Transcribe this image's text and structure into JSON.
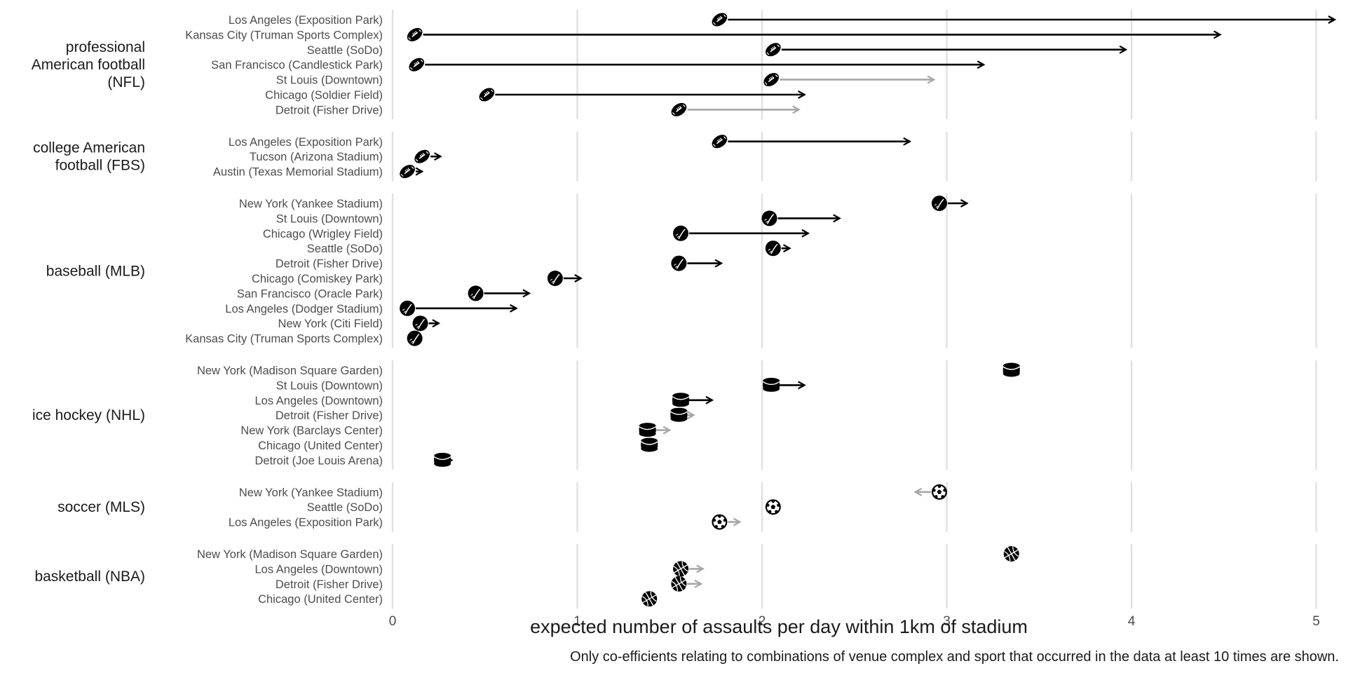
{
  "chart_data": {
    "type": "arrow-dot",
    "xlabel": "expected number of assaults per day within 1km of stadium",
    "caption": "Only co-efficients relating to combinations of venue complex and sport that occurred in the data at least 10 times are shown.",
    "xlim": [
      0,
      5.1
    ],
    "x_ticks": [
      "0",
      "1",
      "2",
      "3",
      "4",
      "5"
    ],
    "grid": true,
    "colors": {
      "significant": "#000000",
      "not_significant": "#a6a6a6",
      "grid": "#e0e0e0",
      "label": "#4d4d4d"
    },
    "groups": [
      {
        "name": "professional American football (NFL)",
        "label_lines": [
          "professional",
          "American football",
          "(NFL)"
        ],
        "icon": "american-football-icon",
        "rows": [
          {
            "venue": "Los Angeles (Exposition Park)",
            "from": 1.77,
            "to": 5.1,
            "significant": true
          },
          {
            "venue": "Kansas City (Truman Sports Complex)",
            "from": 0.12,
            "to": 4.48,
            "significant": true
          },
          {
            "venue": "Seattle (SoDo)",
            "from": 2.06,
            "to": 3.97,
            "significant": true
          },
          {
            "venue": "San Francisco (Candlestick Park)",
            "from": 0.13,
            "to": 3.2,
            "significant": true
          },
          {
            "venue": "St Louis (Downtown)",
            "from": 2.05,
            "to": 2.93,
            "significant": false
          },
          {
            "venue": "Chicago (Soldier Field)",
            "from": 0.51,
            "to": 2.23,
            "significant": true
          },
          {
            "venue": "Detroit (Fisher Drive)",
            "from": 1.55,
            "to": 2.2,
            "significant": false
          }
        ]
      },
      {
        "name": "college American football (FBS)",
        "label_lines": [
          "college American",
          "football (FBS)"
        ],
        "icon": "american-football-icon",
        "rows": [
          {
            "venue": "Los Angeles (Exposition Park)",
            "from": 1.77,
            "to": 2.8,
            "significant": true
          },
          {
            "venue": "Tucson (Arizona Stadium)",
            "from": 0.16,
            "to": 0.26,
            "significant": true
          },
          {
            "venue": "Austin (Texas Memorial Stadium)",
            "from": 0.08,
            "to": 0.16,
            "significant": true
          }
        ]
      },
      {
        "name": "baseball (MLB)",
        "label_lines": [
          "baseball (MLB)"
        ],
        "icon": "baseball-icon",
        "rows": [
          {
            "venue": "New York (Yankee Stadium)",
            "from": 2.96,
            "to": 3.11,
            "significant": true
          },
          {
            "venue": "St Louis (Downtown)",
            "from": 2.04,
            "to": 2.42,
            "significant": true
          },
          {
            "venue": "Chicago (Wrigley Field)",
            "from": 1.56,
            "to": 2.25,
            "significant": true
          },
          {
            "venue": "Seattle (SoDo)",
            "from": 2.06,
            "to": 2.15,
            "significant": true
          },
          {
            "venue": "Detroit (Fisher Drive)",
            "from": 1.55,
            "to": 1.78,
            "significant": true
          },
          {
            "venue": "Chicago (Comiskey Park)",
            "from": 0.88,
            "to": 1.02,
            "significant": true
          },
          {
            "venue": "San Francisco (Oracle Park)",
            "from": 0.45,
            "to": 0.74,
            "significant": true
          },
          {
            "venue": "Los Angeles (Dodger Stadium)",
            "from": 0.08,
            "to": 0.67,
            "significant": true
          },
          {
            "venue": "New York (Citi Field)",
            "from": 0.15,
            "to": 0.25,
            "significant": true
          },
          {
            "venue": "Kansas City (Truman Sports Complex)",
            "from": 0.12,
            "to": 0.12,
            "significant": true
          }
        ]
      },
      {
        "name": "ice hockey (NHL)",
        "label_lines": [
          "ice hockey (NHL)"
        ],
        "icon": "hockey-puck-icon",
        "rows": [
          {
            "venue": "New York (Madison Square Garden)",
            "from": 3.35,
            "to": 3.35,
            "significant": true
          },
          {
            "venue": "St Louis (Downtown)",
            "from": 2.05,
            "to": 2.23,
            "significant": true
          },
          {
            "venue": "Los Angeles (Downtown)",
            "from": 1.56,
            "to": 1.73,
            "significant": true
          },
          {
            "venue": "Detroit (Fisher Drive)",
            "from": 1.55,
            "to": 1.63,
            "significant": false
          },
          {
            "venue": "New York (Barclays Center)",
            "from": 1.38,
            "to": 1.5,
            "significant": false
          },
          {
            "venue": "Chicago (United Center)",
            "from": 1.39,
            "to": 1.39,
            "significant": true
          },
          {
            "venue": "Detroit (Joe Louis Arena)",
            "from": 0.27,
            "to": 0.32,
            "significant": true
          }
        ]
      },
      {
        "name": "soccer (MLS)",
        "label_lines": [
          "soccer (MLS)"
        ],
        "icon": "soccer-ball-icon",
        "rows": [
          {
            "venue": "New York (Yankee Stadium)",
            "from": 2.96,
            "to": 2.83,
            "significant": false
          },
          {
            "venue": "Seattle (SoDo)",
            "from": 2.06,
            "to": 2.06,
            "significant": true
          },
          {
            "venue": "Los Angeles (Exposition Park)",
            "from": 1.77,
            "to": 1.88,
            "significant": false
          }
        ]
      },
      {
        "name": "basketball (NBA)",
        "label_lines": [
          "basketball (NBA)"
        ],
        "icon": "basketball-icon",
        "rows": [
          {
            "venue": "New York (Madison Square Garden)",
            "from": 3.35,
            "to": 3.35,
            "significant": true
          },
          {
            "venue": "Los Angeles (Downtown)",
            "from": 1.56,
            "to": 1.68,
            "significant": false
          },
          {
            "venue": "Detroit (Fisher Drive)",
            "from": 1.55,
            "to": 1.67,
            "significant": false
          },
          {
            "venue": "Chicago (United Center)",
            "from": 1.39,
            "to": 1.39,
            "significant": true
          }
        ]
      }
    ]
  }
}
